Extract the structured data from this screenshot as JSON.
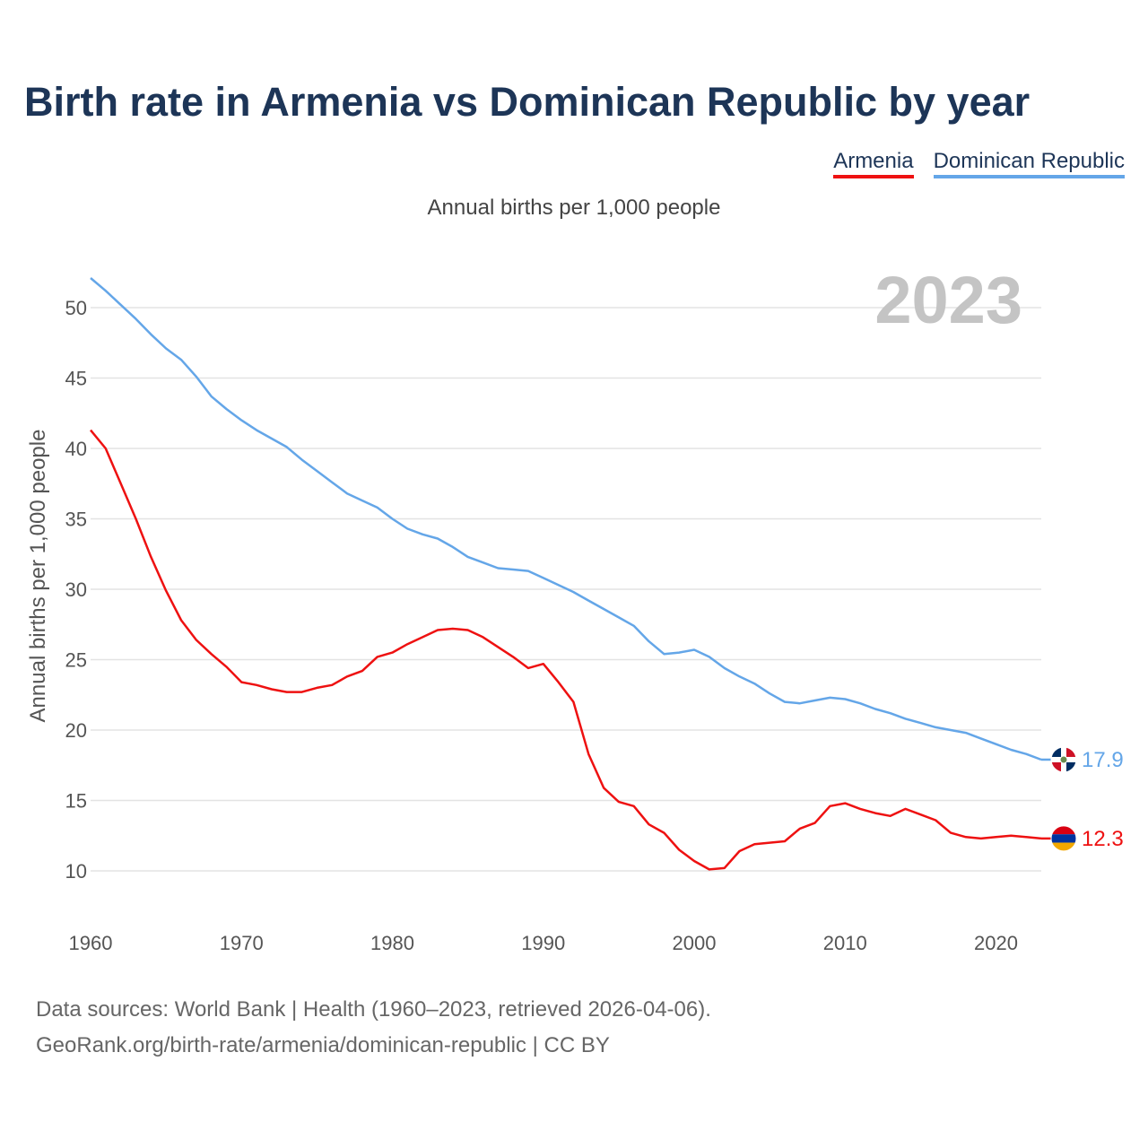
{
  "chart_data": {
    "type": "line",
    "title": "Birth rate in Armenia vs Dominican Republic by year",
    "subtitle": "Annual births per 1,000 people",
    "ylabel": "Annual births per 1,000 people",
    "xlabel": "",
    "year_label": "2023",
    "xlim": [
      1960,
      2023
    ],
    "ylim": [
      7,
      53
    ],
    "x_ticks": [
      1960,
      1970,
      1980,
      1990,
      2000,
      2010,
      2020
    ],
    "y_ticks": [
      10,
      15,
      20,
      25,
      30,
      35,
      40,
      45,
      50
    ],
    "grid": true,
    "legend_position": "top-right",
    "years": [
      1960,
      1961,
      1962,
      1963,
      1964,
      1965,
      1966,
      1967,
      1968,
      1969,
      1970,
      1971,
      1972,
      1973,
      1974,
      1975,
      1976,
      1977,
      1978,
      1979,
      1980,
      1981,
      1982,
      1983,
      1984,
      1985,
      1986,
      1987,
      1988,
      1989,
      1990,
      1991,
      1992,
      1993,
      1994,
      1995,
      1996,
      1997,
      1998,
      1999,
      2000,
      2001,
      2002,
      2003,
      2004,
      2005,
      2006,
      2007,
      2008,
      2009,
      2010,
      2011,
      2012,
      2013,
      2014,
      2015,
      2016,
      2017,
      2018,
      2019,
      2020,
      2021,
      2022,
      2023
    ],
    "series": [
      {
        "name": "Dominican Republic",
        "color": "#64a6e8",
        "end_label": "17.9",
        "flag": "dominican-republic-flag-icon",
        "values": [
          52.1,
          51.2,
          50.2,
          49.2,
          48.1,
          47.1,
          46.3,
          45.1,
          43.7,
          42.8,
          42.0,
          41.3,
          40.7,
          40.1,
          39.2,
          38.4,
          37.6,
          36.8,
          36.3,
          35.8,
          35.0,
          34.3,
          33.9,
          33.6,
          33.0,
          32.3,
          31.9,
          31.5,
          31.4,
          31.3,
          30.8,
          30.3,
          29.8,
          29.2,
          28.6,
          28.0,
          27.4,
          26.3,
          25.4,
          25.5,
          25.7,
          25.2,
          24.4,
          23.8,
          23.3,
          22.6,
          22.0,
          21.9,
          22.1,
          22.3,
          22.2,
          21.9,
          21.5,
          21.2,
          20.8,
          20.5,
          20.2,
          20.0,
          19.8,
          19.4,
          19.0,
          18.6,
          18.3,
          17.9
        ]
      },
      {
        "name": "Armenia",
        "color": "#ee1111",
        "end_label": "12.3",
        "flag": "armenia-flag-icon",
        "values": [
          41.3,
          40.0,
          37.5,
          35.0,
          32.3,
          29.9,
          27.8,
          26.4,
          25.4,
          24.5,
          23.4,
          23.2,
          22.9,
          22.7,
          22.7,
          23.0,
          23.2,
          23.8,
          24.2,
          25.2,
          25.5,
          26.1,
          26.6,
          27.1,
          27.2,
          27.1,
          26.6,
          25.9,
          25.2,
          24.4,
          24.7,
          23.4,
          22.0,
          18.3,
          15.9,
          14.9,
          14.6,
          13.3,
          12.7,
          11.5,
          10.7,
          10.1,
          10.2,
          11.4,
          11.9,
          12.0,
          12.1,
          13.0,
          13.4,
          14.6,
          14.8,
          14.4,
          14.1,
          13.9,
          14.4,
          14.0,
          13.6,
          12.7,
          12.4,
          12.3,
          12.4,
          12.5,
          12.4,
          12.3
        ]
      }
    ]
  },
  "source": {
    "line1": "Data sources: World Bank | Health (1960–2023, retrieved 2026-04-06).",
    "line2": "GeoRank.org/birth-rate/armenia/dominican-republic | CC BY"
  }
}
